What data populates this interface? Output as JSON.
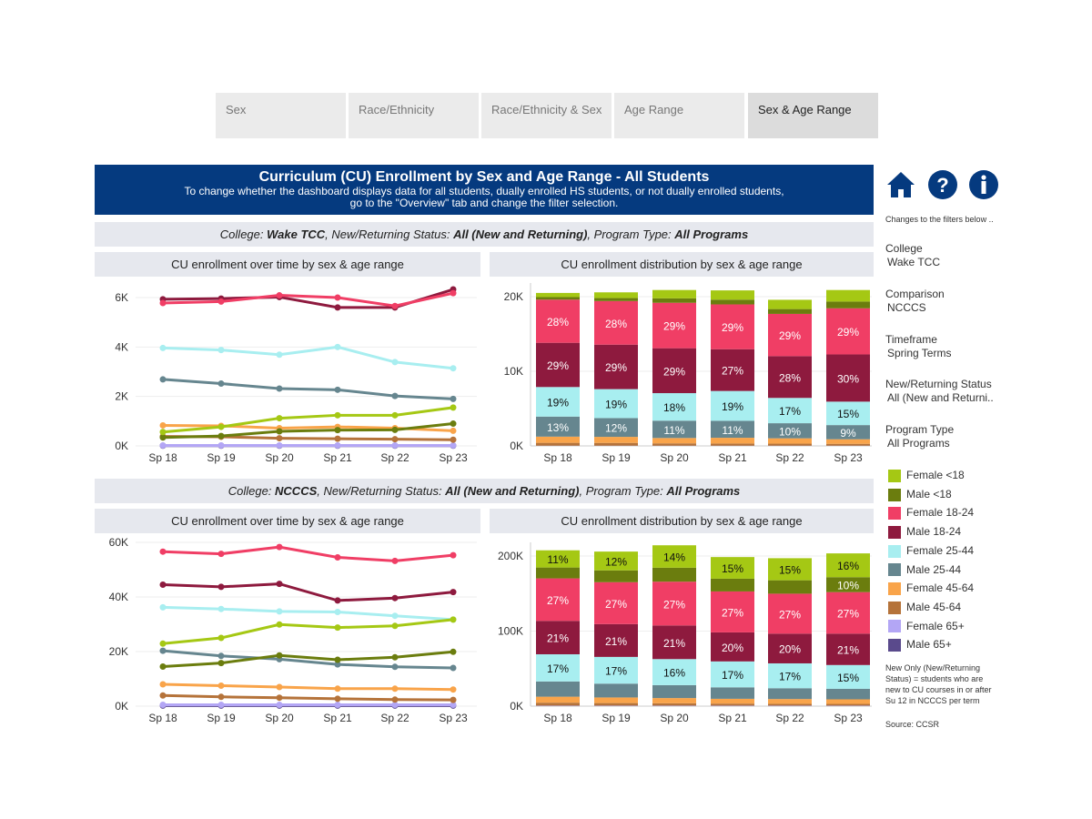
{
  "tabs": [
    {
      "label": "Sex"
    },
    {
      "label": "Race/Ethnicity"
    },
    {
      "label": "Race/Ethnicity & Sex"
    },
    {
      "label": "Age Range"
    },
    {
      "label": "Sex & Age Range",
      "active": true
    }
  ],
  "header": {
    "title": "Curriculum (CU) Enrollment by Sex and Age Range - All Students",
    "subtitle1": "To change whether the dashboard displays data for all students, dually enrolled HS students, or not dually enrolled students,",
    "subtitle2": "go to the \"Overview\" tab and change the filter selection."
  },
  "filter_bars": [
    {
      "college_label": "College: ",
      "college": "Wake TCC",
      "status_label": ", New/Returning Status: ",
      "status": "All (New and Returning)",
      "program_label": ", Program Type: ",
      "program": "All Programs"
    },
    {
      "college_label": "College: ",
      "college": "NCCCS",
      "status_label": ", New/Returning Status: ",
      "status": "All (New and Returning)",
      "program_label": ", Program Type: ",
      "program": "All Programs"
    }
  ],
  "panel_titles": {
    "line": "CU enrollment over time by sex & age range",
    "bar": "CU enrollment distribution by sex & age range"
  },
  "icons": [
    "home-icon",
    "help-icon",
    "info-icon"
  ],
  "side": {
    "note": "Changes to the filters below ..",
    "filters": [
      {
        "label": "College",
        "value": "Wake TCC"
      },
      {
        "label": "Comparison",
        "value": "NCCCS"
      },
      {
        "label": "Timeframe",
        "value": "Spring Terms"
      },
      {
        "label": "New/Returning Status",
        "value": "All (New and Returni.."
      },
      {
        "label": "Program Type",
        "value": "All Programs"
      }
    ],
    "footnote": "New Only (New/Returning Status) = students who are new to CU courses in or after Su 12 in NCCCS per term",
    "source": "Source: CCSR"
  },
  "legend": [
    {
      "name": "Female <18",
      "color": "#a5c814"
    },
    {
      "name": "Male <18",
      "color": "#6b7d0e"
    },
    {
      "name": "Female 18-24",
      "color": "#f03e65"
    },
    {
      "name": "Male 18-24",
      "color": "#8e1a3e"
    },
    {
      "name": "Female 25-44",
      "color": "#a8eef0"
    },
    {
      "name": "Male 25-44",
      "color": "#66868f"
    },
    {
      "name": "Female 45-64",
      "color": "#f9a44a"
    },
    {
      "name": "Male 45-64",
      "color": "#b5733a"
    },
    {
      "name": "Female 65+",
      "color": "#b3a6f5"
    },
    {
      "name": "Male 65+",
      "color": "#5a4a8c"
    }
  ],
  "chart_data": [
    {
      "type": "line",
      "college": "Wake TCC",
      "categories": [
        "Sp 18",
        "Sp 19",
        "Sp 20",
        "Sp 21",
        "Sp 22",
        "Sp 23"
      ],
      "yticks": [
        "0K",
        "2K",
        "4K",
        "6K"
      ],
      "ylim": [
        0,
        6.5
      ],
      "unit": "K",
      "grid": true,
      "series": [
        {
          "name": "Female <18",
          "values": [
            0.56,
            0.77,
            1.12,
            1.24,
            1.24,
            1.55
          ]
        },
        {
          "name": "Male <18",
          "values": [
            0.34,
            0.4,
            0.59,
            0.64,
            0.65,
            0.9
          ]
        },
        {
          "name": "Female 18-24",
          "values": [
            5.78,
            5.84,
            6.09,
            6.0,
            5.66,
            6.18
          ]
        },
        {
          "name": "Male 18-24",
          "values": [
            5.93,
            5.96,
            6.02,
            5.6,
            5.6,
            6.33
          ]
        },
        {
          "name": "Female 25-44",
          "values": [
            3.96,
            3.88,
            3.69,
            4.0,
            3.39,
            3.14
          ]
        },
        {
          "name": "Male 25-44",
          "values": [
            2.69,
            2.52,
            2.32,
            2.27,
            2.02,
            1.9
          ]
        },
        {
          "name": "Female 45-64",
          "values": [
            0.83,
            0.81,
            0.72,
            0.77,
            0.72,
            0.61
          ]
        },
        {
          "name": "Male 45-64",
          "values": [
            0.38,
            0.37,
            0.31,
            0.29,
            0.27,
            0.25
          ]
        },
        {
          "name": "Female 65+",
          "values": [
            0.02,
            0.02,
            0.02,
            0.02,
            0.02,
            0.02
          ]
        },
        {
          "name": "Male 65+",
          "values": [
            0.01,
            0.01,
            0.01,
            0.01,
            0.01,
            0.01
          ]
        }
      ]
    },
    {
      "type": "bar",
      "stacked": true,
      "college": "Wake TCC",
      "categories": [
        "Sp 18",
        "Sp 19",
        "Sp 20",
        "Sp 21",
        "Sp 22",
        "Sp 23"
      ],
      "yticks": [
        "0K",
        "10K",
        "20K"
      ],
      "ylim": [
        0,
        22
      ],
      "unit": "K",
      "grid": true,
      "labels": {
        "Female 18-24": [
          "28%",
          "28%",
          "29%",
          "29%",
          "29%",
          "29%"
        ],
        "Male 18-24": [
          "29%",
          "29%",
          "29%",
          "27%",
          "28%",
          "30%"
        ],
        "Female 25-44": [
          "19%",
          "19%",
          "18%",
          "19%",
          "17%",
          "15%"
        ],
        "Male 25-44": [
          "13%",
          "12%",
          "11%",
          "11%",
          "10%",
          "9%"
        ]
      }
    },
    {
      "type": "line",
      "college": "NCCCS",
      "categories": [
        "Sp 18",
        "Sp 19",
        "Sp 20",
        "Sp 21",
        "Sp 22",
        "Sp 23"
      ],
      "yticks": [
        "0K",
        "20K",
        "40K",
        "60K"
      ],
      "ylim": [
        0,
        62
      ],
      "unit": "K",
      "grid": true,
      "series": [
        {
          "name": "Female <18",
          "values": [
            22.9,
            25.0,
            29.9,
            28.8,
            29.4,
            31.7
          ]
        },
        {
          "name": "Male <18",
          "values": [
            14.5,
            15.8,
            18.6,
            17.0,
            17.9,
            19.9
          ]
        },
        {
          "name": "Female 18-24",
          "values": [
            56.6,
            55.8,
            58.3,
            54.5,
            53.2,
            55.3
          ]
        },
        {
          "name": "Male 18-24",
          "values": [
            44.5,
            43.7,
            44.8,
            38.7,
            39.6,
            41.8
          ]
        },
        {
          "name": "Female 25-44",
          "values": [
            36.2,
            35.6,
            34.7,
            34.5,
            33.1,
            31.7
          ]
        },
        {
          "name": "Male 25-44",
          "values": [
            20.3,
            18.4,
            17.2,
            15.3,
            14.4,
            14.0
          ]
        },
        {
          "name": "Female 45-64",
          "values": [
            8.0,
            7.5,
            7.0,
            6.4,
            6.4,
            6.1
          ]
        },
        {
          "name": "Male 45-64",
          "values": [
            3.9,
            3.4,
            3.1,
            2.7,
            2.4,
            2.3
          ]
        },
        {
          "name": "Female 65+",
          "values": [
            0.5,
            0.5,
            0.5,
            0.5,
            0.5,
            0.5
          ]
        },
        {
          "name": "Male 65+",
          "values": [
            0.2,
            0.2,
            0.2,
            0.2,
            0.2,
            0.2
          ]
        }
      ]
    },
    {
      "type": "bar",
      "stacked": true,
      "college": "NCCCS",
      "categories": [
        "Sp 18",
        "Sp 19",
        "Sp 20",
        "Sp 21",
        "Sp 22",
        "Sp 23"
      ],
      "yticks": [
        "0K",
        "100K",
        "200K"
      ],
      "ylim": [
        0,
        220
      ],
      "unit": "K",
      "grid": true,
      "labels": {
        "Female <18": [
          "11%",
          "12%",
          "14%",
          "15%",
          "15%",
          "16%"
        ],
        "Male <18": [
          "",
          "",
          "",
          "",
          "",
          "10%"
        ],
        "Female 18-24": [
          "27%",
          "27%",
          "27%",
          "27%",
          "27%",
          "27%"
        ],
        "Male 18-24": [
          "21%",
          "21%",
          "21%",
          "20%",
          "20%",
          "21%"
        ],
        "Female 25-44": [
          "17%",
          "17%",
          "16%",
          "17%",
          "17%",
          "15%"
        ]
      }
    }
  ]
}
